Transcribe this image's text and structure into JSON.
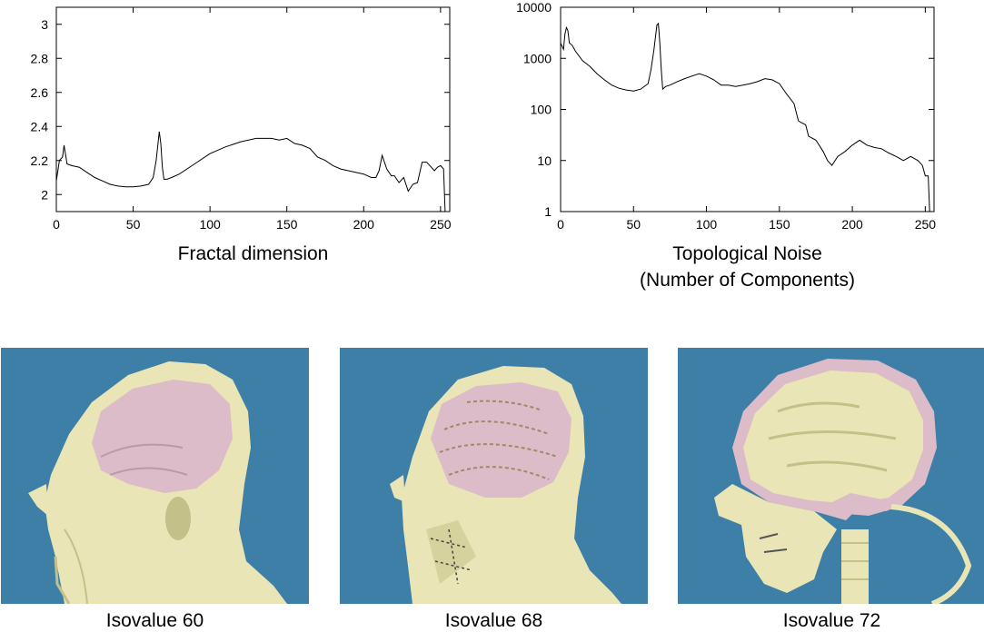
{
  "chart_data": [
    {
      "type": "line",
      "xlabel": "Fractal dimension",
      "xlim": [
        0,
        256
      ],
      "ylim": [
        1.9,
        3.1
      ],
      "xticks": [
        0,
        50,
        100,
        150,
        200,
        250
      ],
      "yticks": [
        2,
        2.2,
        2.4,
        2.6,
        2.8,
        3
      ],
      "ytick_labels": [
        "2",
        "2.2",
        "2.4",
        "2.6",
        "2.8",
        "3"
      ],
      "yscale": "linear",
      "grid": false,
      "series": [
        {
          "x": [
            0,
            2,
            4,
            5,
            7,
            10,
            15,
            20,
            25,
            30,
            35,
            40,
            45,
            50,
            55,
            60,
            63,
            65,
            67,
            68,
            69,
            70,
            72,
            75,
            80,
            90,
            100,
            110,
            120,
            130,
            140,
            145,
            150,
            155,
            160,
            165,
            170,
            175,
            180,
            185,
            190,
            195,
            200,
            205,
            208,
            210,
            212,
            215,
            218,
            220,
            223,
            226,
            229,
            232,
            235,
            238,
            241,
            244,
            246,
            248,
            250,
            252,
            253
          ],
          "y": [
            2.08,
            2.2,
            2.22,
            2.29,
            2.18,
            2.17,
            2.16,
            2.13,
            2.1,
            2.08,
            2.06,
            2.05,
            2.045,
            2.045,
            2.05,
            2.06,
            2.1,
            2.2,
            2.37,
            2.3,
            2.16,
            2.09,
            2.09,
            2.1,
            2.12,
            2.18,
            2.24,
            2.28,
            2.31,
            2.33,
            2.33,
            2.32,
            2.33,
            2.3,
            2.29,
            2.27,
            2.22,
            2.2,
            2.17,
            2.15,
            2.14,
            2.13,
            2.12,
            2.1,
            2.1,
            2.14,
            2.23,
            2.15,
            2.11,
            2.11,
            2.07,
            2.1,
            2.02,
            2.06,
            2.07,
            2.19,
            2.19,
            2.16,
            2.14,
            2.16,
            2.17,
            2.15,
            1.9
          ]
        }
      ]
    },
    {
      "type": "line",
      "xlabel": "Topological Noise",
      "xlabel_line2": "(Number of Components)",
      "xlim": [
        0,
        256
      ],
      "ylim": [
        1,
        10000
      ],
      "xticks": [
        0,
        50,
        100,
        150,
        200,
        250
      ],
      "yticks": [
        1,
        10,
        100,
        1000,
        10000
      ],
      "ytick_labels": [
        "1",
        "10",
        "100",
        "1000",
        "10000"
      ],
      "yscale": "log",
      "grid": false,
      "series": [
        {
          "x": [
            0,
            2,
            3,
            4,
            5,
            6,
            8,
            10,
            15,
            20,
            25,
            30,
            35,
            40,
            45,
            50,
            55,
            60,
            62,
            64,
            66,
            67,
            68,
            69,
            70,
            72,
            75,
            80,
            85,
            90,
            95,
            100,
            105,
            110,
            115,
            120,
            125,
            130,
            135,
            140,
            145,
            150,
            155,
            160,
            163,
            165,
            168,
            170,
            175,
            180,
            183,
            186,
            190,
            195,
            200,
            205,
            210,
            215,
            220,
            225,
            230,
            235,
            240,
            245,
            248,
            250,
            252,
            253
          ],
          "y": [
            2000,
            1500,
            3000,
            4000,
            3500,
            2000,
            1800,
            1400,
            900,
            700,
            500,
            380,
            300,
            260,
            240,
            230,
            250,
            320,
            600,
            1500,
            4500,
            4800,
            2000,
            600,
            250,
            280,
            300,
            350,
            400,
            450,
            500,
            450,
            380,
            300,
            300,
            280,
            300,
            320,
            350,
            400,
            380,
            320,
            200,
            130,
            60,
            55,
            50,
            30,
            25,
            15,
            10,
            8,
            12,
            15,
            20,
            25,
            20,
            18,
            17,
            14,
            12,
            10,
            12,
            10,
            8,
            5,
            5,
            1
          ]
        }
      ]
    }
  ],
  "panels": [
    {
      "caption": "Isovalue 60",
      "skull_exposed": false
    },
    {
      "caption": "Isovalue 68",
      "skull_exposed": false
    },
    {
      "caption": "Isovalue 72",
      "skull_exposed": true
    }
  ],
  "colors": {
    "panel_background": "#3d7fa6",
    "surface": "#e9e5b6",
    "surface_shadow": "#c4c08a",
    "inner_surface": "#dcbcc8",
    "line": "#000000"
  }
}
